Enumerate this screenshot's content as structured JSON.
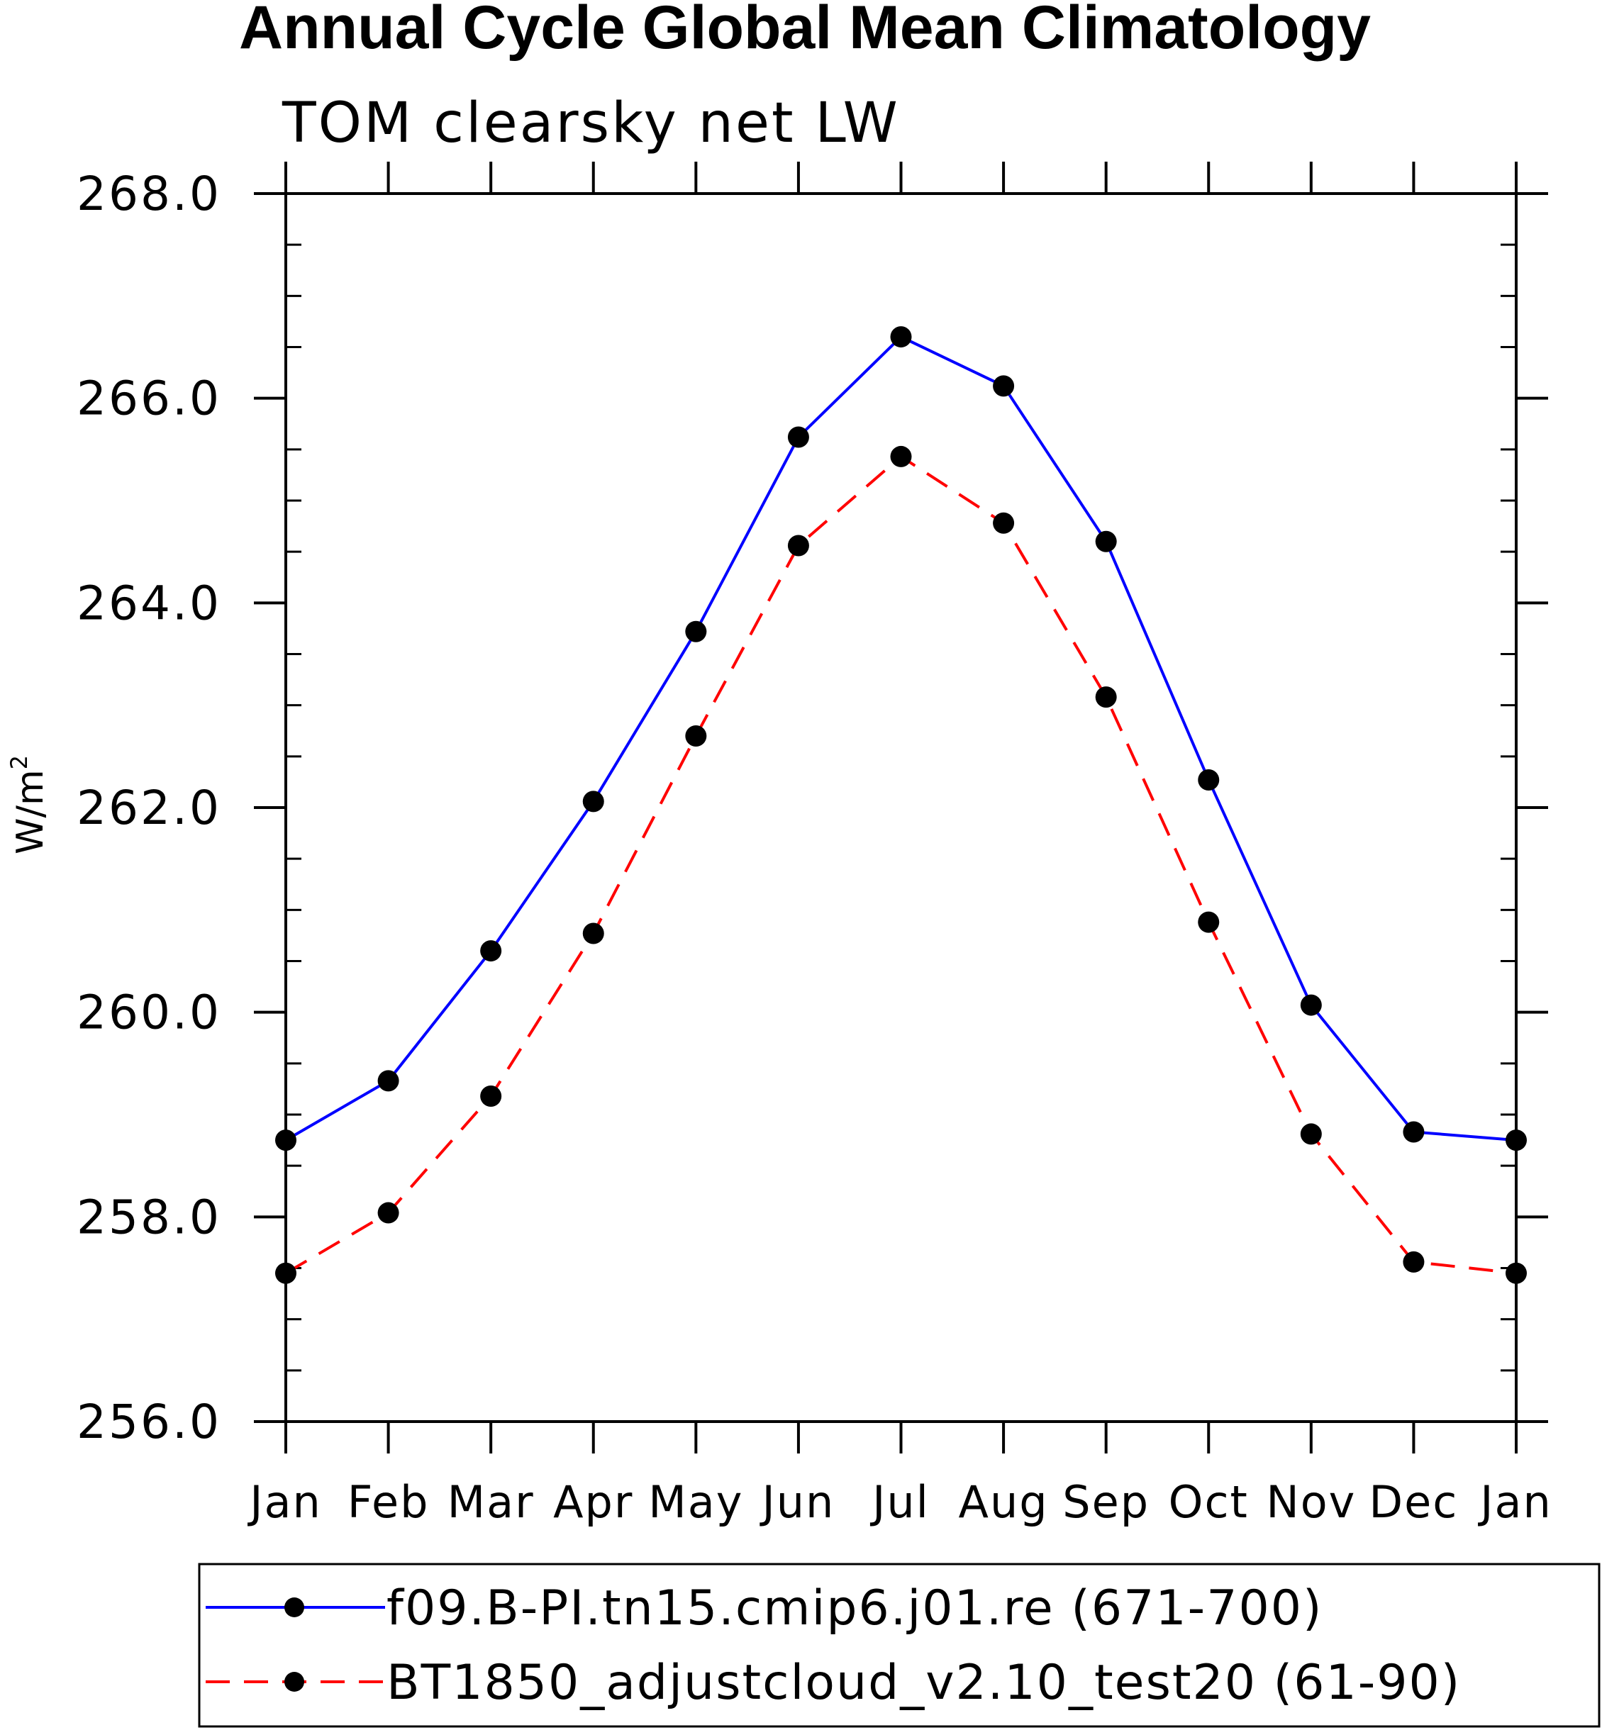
{
  "chart_data": {
    "type": "line",
    "title": "Annual Cycle Global Mean Climatology",
    "subtitle": "TOM clearsky net LW",
    "ylabel": "W/m",
    "ylabel_sup": "2",
    "xlabel": "",
    "categories": [
      "Jan",
      "Feb",
      "Mar",
      "Apr",
      "May",
      "Jun",
      "Jul",
      "Aug",
      "Sep",
      "Oct",
      "Nov",
      "Dec",
      "Jan"
    ],
    "ylim": [
      256.0,
      268.0
    ],
    "yticks": [
      256.0,
      258.0,
      260.0,
      262.0,
      264.0,
      266.0,
      268.0
    ],
    "ytick_labels": [
      "256.0",
      "258.0",
      "260.0",
      "262.0",
      "264.0",
      "266.0",
      "268.0"
    ],
    "yminor_step": 0.5,
    "grid": false,
    "legend_position": "bottom",
    "series": [
      {
        "name": "f09.B-PI.tn15.cmip6.j01.re (671-700)",
        "color": "#0000ff",
        "dash": "solid",
        "marker": "filled-circle",
        "values": [
          258.75,
          259.33,
          260.6,
          262.06,
          263.72,
          265.62,
          266.6,
          266.12,
          264.6,
          262.27,
          260.07,
          258.83,
          258.75
        ]
      },
      {
        "name": "BT1850_adjustcloud_v2.10_test20 (61-90)",
        "color": "#ff0000",
        "dash": "dashed",
        "marker": "filled-circle",
        "values": [
          257.45,
          258.04,
          259.18,
          260.77,
          262.7,
          264.56,
          265.43,
          264.78,
          263.08,
          260.88,
          258.81,
          257.56,
          257.45
        ]
      }
    ]
  }
}
